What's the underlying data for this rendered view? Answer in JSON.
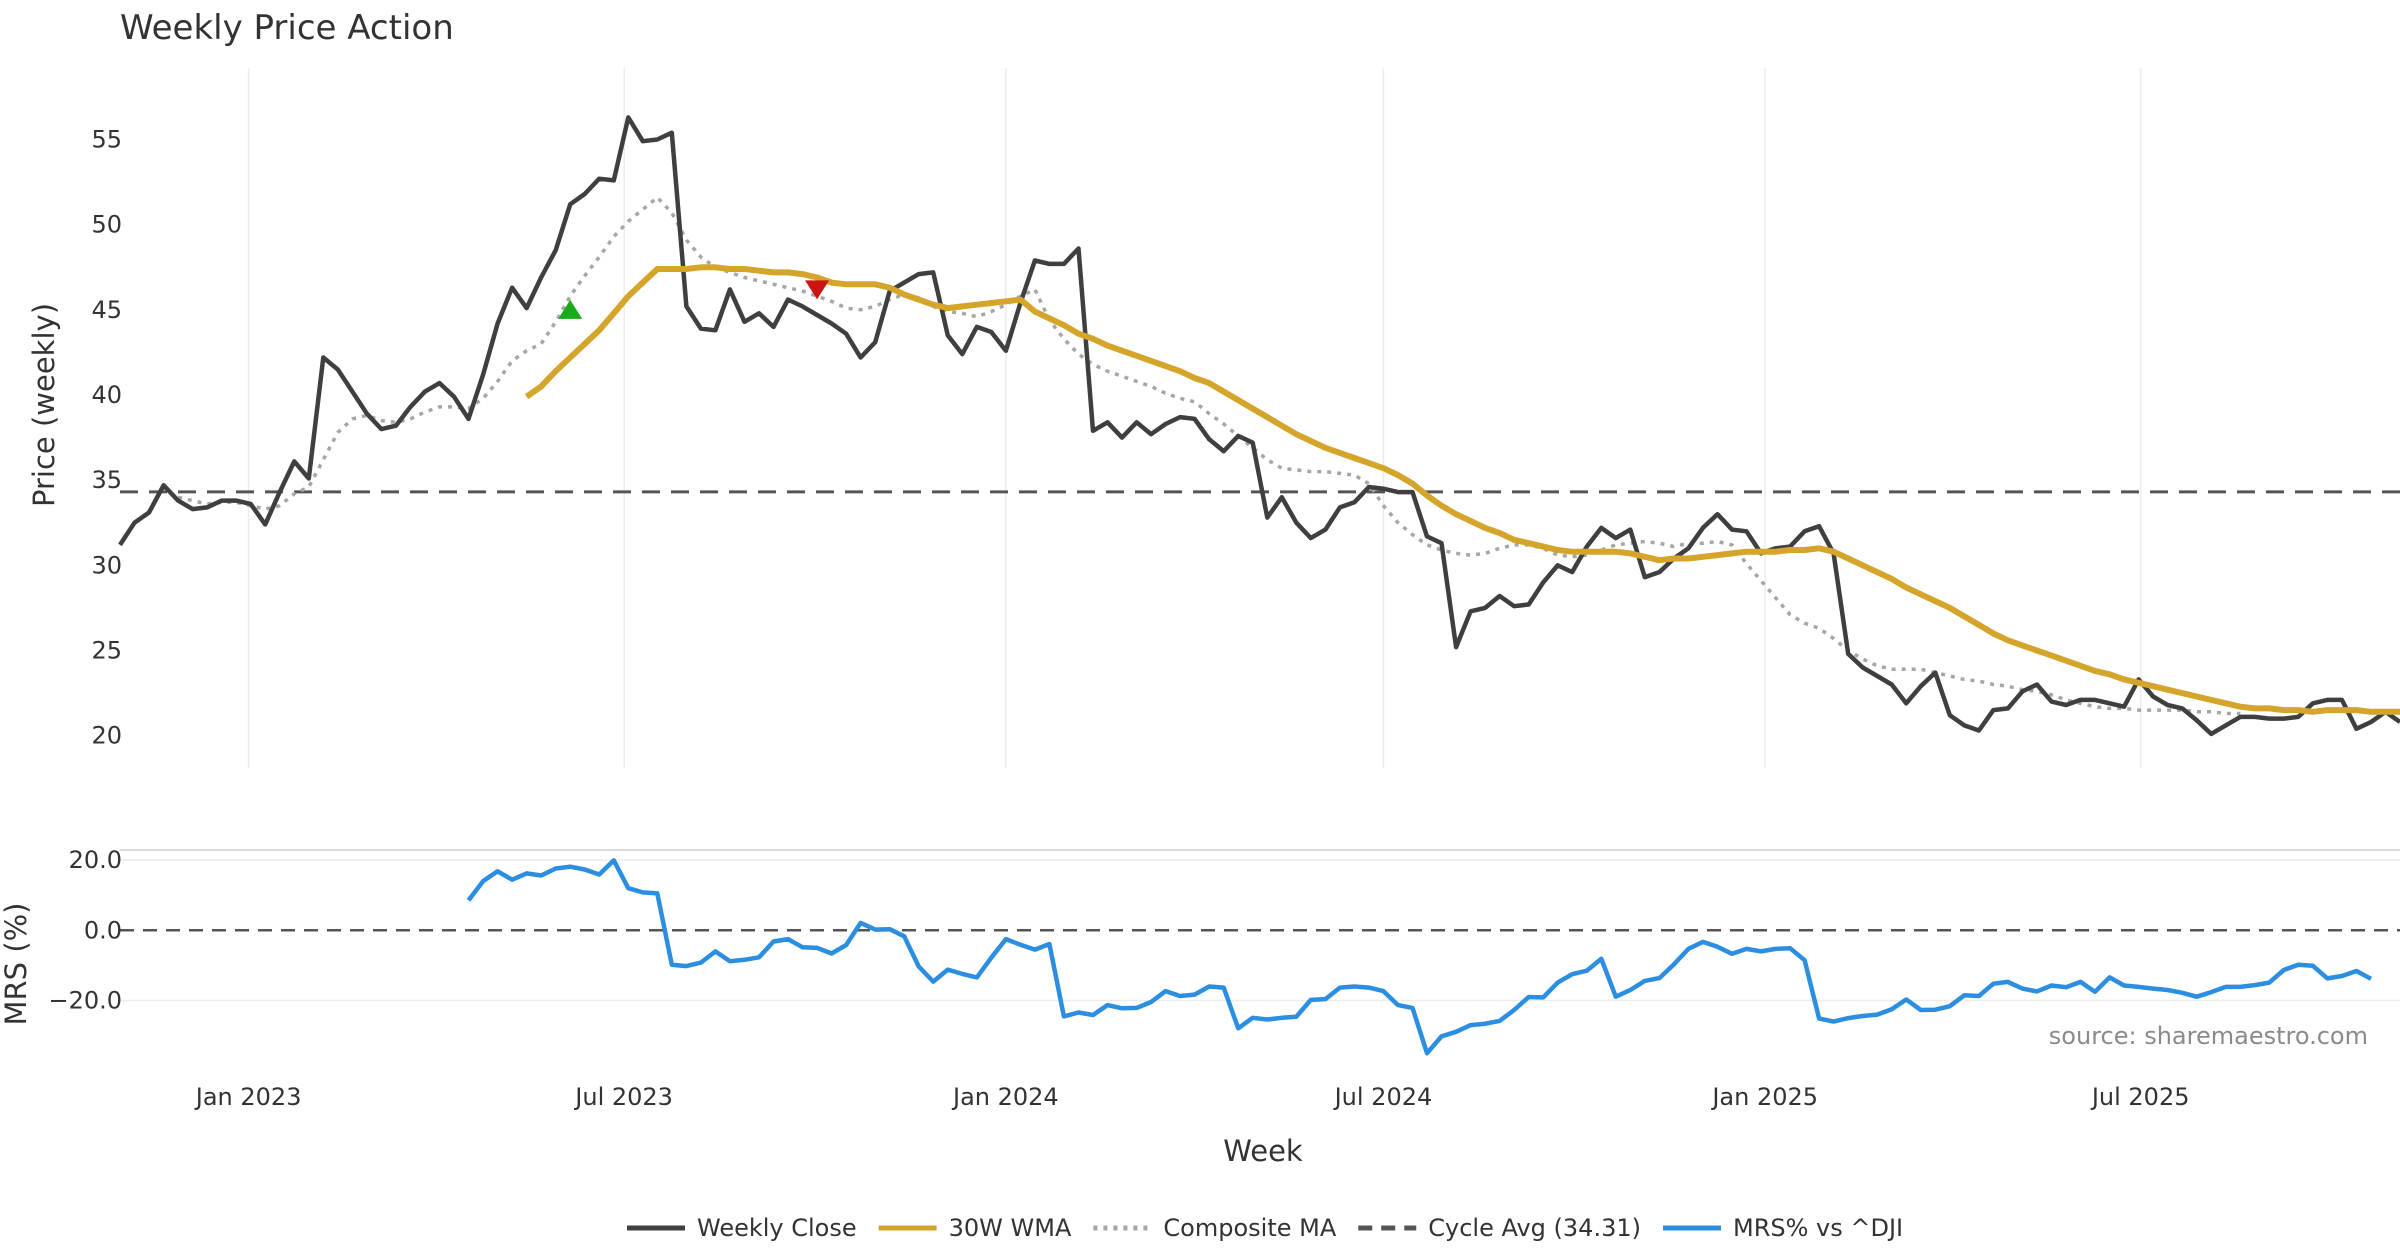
{
  "chart_data": {
    "type": "line",
    "title": "Weekly Price Action",
    "xlabel": "Week",
    "source": "source: sharemaestro.com",
    "x_ticks": [
      "Jan 2023",
      "Jul 2023",
      "Jan 2024",
      "Jul 2024",
      "Jan 2025",
      "Jul 2025"
    ],
    "x_range": [
      "2022-10-31",
      "2025-11-03"
    ],
    "price_panel": {
      "ylabel": "Price (weekly)",
      "ylim": [
        18.1,
        59.2
      ],
      "y_ticks": [
        55,
        50,
        45,
        40,
        35,
        30,
        25,
        20
      ],
      "weekly_close": {
        "start_date": "2022-10-31",
        "values": [
          31.2,
          32.5,
          33.1,
          34.7,
          33.8,
          33.3,
          33.4,
          33.8,
          33.8,
          33.6,
          32.4,
          34.3,
          36.1,
          35.1,
          42.2,
          41.5,
          40.2,
          38.9,
          38.0,
          38.2,
          39.3,
          40.2,
          40.7,
          39.9,
          38.6,
          41.2,
          44.2,
          46.3,
          45.1,
          46.9,
          48.5,
          51.2,
          51.8,
          52.7,
          52.6,
          56.3,
          54.9,
          55.0,
          55.4,
          45.2,
          43.9,
          43.8,
          46.2,
          44.3,
          44.8,
          44.0,
          45.6,
          45.2,
          44.7,
          44.2,
          43.6,
          42.2,
          43.1,
          46.1,
          46.6,
          47.1,
          47.2,
          43.5,
          42.4,
          44.0,
          43.7,
          42.6,
          45.4,
          47.9,
          47.7,
          47.7,
          48.6,
          37.9,
          38.4,
          37.5,
          38.4,
          37.7,
          38.3,
          38.7,
          38.6,
          37.4,
          36.7,
          37.6,
          37.2,
          32.8,
          34.0,
          32.5,
          31.6,
          32.1,
          33.4,
          33.7,
          34.6,
          34.5,
          34.3,
          34.3,
          31.7,
          31.3,
          25.2,
          27.3,
          27.5,
          28.2,
          27.6,
          27.7,
          29.0,
          30.0,
          29.6,
          31.1,
          32.2,
          31.6,
          32.1,
          29.3,
          29.6,
          30.4,
          31.0,
          32.2,
          33.0,
          32.1,
          32.0,
          30.7,
          31.0,
          31.1,
          32.0,
          32.3,
          30.7,
          24.8,
          24.0,
          23.5,
          23.0,
          21.9,
          22.9,
          23.7,
          21.2,
          20.6,
          20.3,
          21.5,
          21.6,
          22.6,
          23.0,
          22.0,
          21.8,
          22.1,
          22.1,
          21.9,
          21.7,
          23.3,
          22.3,
          21.8,
          21.6,
          20.9,
          20.1,
          20.6,
          21.1,
          21.1,
          21.0,
          21.0,
          21.1,
          21.9,
          22.1,
          22.1,
          20.4,
          20.8,
          21.4,
          20.8
        ]
      },
      "wma_30w": {
        "start_date": "2023-05-15",
        "values": [
          39.9,
          40.5,
          41.4,
          42.2,
          43.0,
          43.8,
          44.8,
          45.8,
          46.6,
          47.4,
          47.4,
          47.4,
          47.5,
          47.5,
          47.4,
          47.4,
          47.3,
          47.2,
          47.2,
          47.1,
          46.9,
          46.6,
          46.5,
          46.5,
          46.5,
          46.3,
          45.9,
          45.6,
          45.3,
          45.1,
          45.2,
          45.3,
          45.4,
          45.5,
          45.6,
          44.9,
          44.5,
          44.1,
          43.6,
          43.3,
          42.9,
          42.6,
          42.3,
          42.0,
          41.7,
          41.4,
          41.0,
          40.7,
          40.2,
          39.7,
          39.2,
          38.7,
          38.2,
          37.7,
          37.3,
          36.9,
          36.6,
          36.3,
          36.0,
          35.7,
          35.3,
          34.8,
          34.1,
          33.5,
          33.0,
          32.6,
          32.2,
          31.9,
          31.5,
          31.3,
          31.1,
          30.9,
          30.8,
          30.8,
          30.8,
          30.8,
          30.7,
          30.5,
          30.3,
          30.4,
          30.4,
          30.5,
          30.6,
          30.7,
          30.8,
          30.8,
          30.8,
          30.9,
          30.9,
          31.0,
          30.8,
          30.4,
          30.0,
          29.6,
          29.2,
          28.7,
          28.3,
          27.9,
          27.5,
          27.0,
          26.5,
          26.0,
          25.6,
          25.3,
          25.0,
          24.7,
          24.4,
          24.1,
          23.8,
          23.6,
          23.3,
          23.1,
          22.9,
          22.7,
          22.5,
          22.3,
          22.1,
          21.9,
          21.7,
          21.6,
          21.6,
          21.5,
          21.5,
          21.4,
          21.5,
          21.5,
          21.5,
          21.4,
          21.4,
          21.4,
          21.3,
          21.3
        ]
      },
      "composite_ma": {
        "start_date": "2022-11-28",
        "values": [
          34.0,
          33.8,
          33.6,
          33.7,
          33.7,
          33.5,
          33.3,
          33.5,
          34.2,
          34.6,
          36.2,
          37.8,
          38.6,
          38.8,
          38.5,
          38.4,
          38.6,
          39.0,
          39.3,
          39.3,
          39.2,
          39.8,
          40.8,
          42.0,
          42.6,
          43.0,
          44.3,
          45.8,
          47.0,
          48.1,
          49.3,
          50.2,
          50.9,
          51.6,
          50.7,
          49.1,
          48.1,
          47.5,
          47.2,
          46.9,
          46.7,
          46.5,
          46.3,
          46.1,
          45.8,
          45.5,
          45.1,
          45.0,
          45.2,
          45.6,
          45.9,
          45.7,
          45.2,
          44.9,
          44.8,
          44.6,
          44.9,
          45.3,
          45.8,
          46.2,
          44.4,
          43.3,
          42.4,
          41.8,
          41.4,
          41.1,
          40.8,
          40.5,
          40.1,
          39.8,
          39.6,
          38.9,
          38.3,
          37.6,
          36.9,
          36.2,
          35.7,
          35.6,
          35.5,
          35.5,
          35.4,
          35.3,
          34.8,
          33.5,
          32.5,
          31.8,
          31.2,
          30.9,
          30.7,
          30.6,
          30.7,
          31.0,
          31.2,
          31.2,
          31.0,
          30.6,
          30.5,
          30.6,
          30.9,
          31.2,
          31.3,
          31.4,
          31.3,
          31.1,
          31.3,
          31.3,
          31.4,
          31.2,
          30.1,
          29.1,
          28.1,
          27.1,
          26.6,
          26.3,
          25.7,
          25.0,
          24.5,
          24.1,
          23.9,
          23.9,
          23.9,
          23.7,
          23.5,
          23.3,
          23.2,
          23.0,
          22.9,
          22.7,
          22.6,
          22.4,
          22.1,
          21.9,
          21.7,
          21.6,
          21.6,
          21.5,
          21.5,
          21.5,
          21.5,
          21.4,
          21.4,
          21.3,
          21.3
        ]
      },
      "cycle_avg": 34.31,
      "markers": [
        {
          "type": "buy",
          "date": "2023-06-05",
          "value": 45.0,
          "color": "#1aaa1a"
        },
        {
          "type": "sell",
          "date": "2023-10-02",
          "value": 46.2,
          "color": "#cc1414"
        }
      ]
    },
    "mrs_panel": {
      "ylabel": "MRS (%)",
      "ylim": [
        -35.5,
        24.0
      ],
      "y_ticks": [
        "20.0",
        "0.0",
        "−20.0"
      ],
      "y_tick_values": [
        20,
        0,
        -20
      ],
      "zero_line": 0,
      "mrs": {
        "start_date": "2023-04-17",
        "values": [
          8.5,
          14.0,
          16.8,
          14.4,
          16.2,
          15.6,
          17.6,
          18.1,
          17.3,
          15.9,
          19.9,
          12.0,
          10.8,
          10.5,
          -9.8,
          -10.2,
          -9.2,
          -6.0,
          -8.8,
          -8.4,
          -7.7,
          -3.2,
          -2.5,
          -4.8,
          -5.0,
          -6.6,
          -4.2,
          2.1,
          0.2,
          0.3,
          -1.7,
          -10.3,
          -14.6,
          -11.2,
          -12.4,
          -13.4,
          -7.8,
          -2.5,
          -4.1,
          -5.5,
          -3.9,
          -24.5,
          -23.4,
          -24.1,
          -21.3,
          -22.2,
          -22.1,
          -20.4,
          -17.3,
          -18.7,
          -18.3,
          -16.0,
          -16.3,
          -27.9,
          -24.9,
          -25.4,
          -24.9,
          -24.6,
          -19.8,
          -19.6,
          -16.3,
          -16.0,
          -16.3,
          -17.3,
          -21.3,
          -22.1,
          -35.0,
          -30.2,
          -28.9,
          -27.0,
          -26.6,
          -25.8,
          -22.7,
          -19.0,
          -19.1,
          -14.9,
          -12.5,
          -11.5,
          -8.1,
          -18.9,
          -17.0,
          -14.4,
          -13.6,
          -9.7,
          -5.3,
          -3.3,
          -4.7,
          -6.7,
          -5.3,
          -6.0,
          -5.3,
          -5.1,
          -8.5,
          -25.1,
          -26.0,
          -25.0,
          -24.4,
          -24.0,
          -22.5,
          -19.7,
          -22.7,
          -22.6,
          -21.6,
          -18.5,
          -18.7,
          -15.2,
          -14.7,
          -16.6,
          -17.4,
          -15.7,
          -16.2,
          -14.7,
          -17.5,
          -13.4,
          -15.7,
          -16.1,
          -16.6,
          -17.0,
          -17.8,
          -18.9,
          -17.6,
          -16.1,
          -16.1,
          -15.6,
          -14.9,
          -11.3,
          -9.8,
          -10.1,
          -13.7,
          -13.0,
          -11.6,
          -13.8
        ]
      }
    },
    "legend": [
      {
        "label": "Weekly Close",
        "style": "solid",
        "color": "#3f3f3f"
      },
      {
        "label": "30W WMA",
        "style": "solid",
        "color": "#d4a52a"
      },
      {
        "label": "Composite MA",
        "style": "dotted",
        "color": "#a6a6a6"
      },
      {
        "label": "Cycle Avg (34.31)",
        "style": "dashed",
        "color": "#555555"
      },
      {
        "label": "MRS% vs ^DJI",
        "style": "solid",
        "color": "#2b8ee0"
      }
    ],
    "legend_position": "bottom-center",
    "grid": true
  }
}
